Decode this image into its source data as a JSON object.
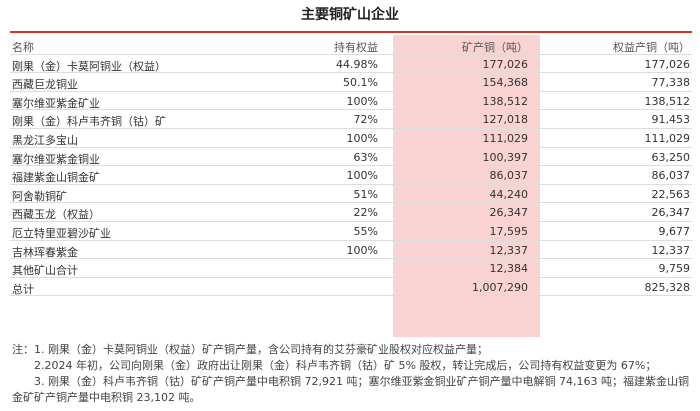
{
  "title": "主要铜矿山企业",
  "table": {
    "header": {
      "name": "名称",
      "share": "持有权益",
      "output": "矿产铜（吨）",
      "equity": "权益产铜（吨）"
    },
    "rows": [
      {
        "name": "刚果（金）卡莫阿铜业（权益）",
        "share": "44.98%",
        "output": "177,026",
        "equity": "177,026"
      },
      {
        "name": "西藏巨龙铜业",
        "share": "50.1%",
        "output": "154,368",
        "equity": "77,338"
      },
      {
        "name": "塞尔维亚紫金矿业",
        "share": "100%",
        "output": "138,512",
        "equity": "138,512"
      },
      {
        "name": "刚果（金）科卢韦齐铜（钴）矿",
        "share": "72%",
        "output": "127,018",
        "equity": "91,453"
      },
      {
        "name": "黑龙江多宝山",
        "share": "100%",
        "output": "111,029",
        "equity": "111,029"
      },
      {
        "name": "塞尔维亚紫金铜业",
        "share": "63%",
        "output": "100,397",
        "equity": "63,250"
      },
      {
        "name": "福建紫金山铜金矿",
        "share": "100%",
        "output": "86,037",
        "equity": "86,037"
      },
      {
        "name": "阿舍勒铜矿",
        "share": "51%",
        "output": "44,240",
        "equity": "22,563"
      },
      {
        "name": "西藏玉龙（权益）",
        "share": "22%",
        "output": "26,347",
        "equity": "26,347"
      },
      {
        "name": "厄立特里亚碧沙矿业",
        "share": "55%",
        "output": "17,595",
        "equity": "9,677"
      },
      {
        "name": "吉林珲春紫金",
        "share": "100%",
        "output": "12,337",
        "equity": "12,337"
      },
      {
        "name": "其他矿山合计",
        "output": "12,384",
        "equity": "9,759"
      },
      {
        "name": "总计",
        "output": "1,007,290",
        "equity": "825,328"
      }
    ]
  },
  "notes": {
    "prefix": "注：",
    "items": [
      "1. 刚果（金）卡莫阿铜业（权益）矿产铜产量，含公司持有的艾芬豪矿业股权对应权益产量；",
      "2.2024 年初，公司向刚果（金）政府出让刚果（金）科卢韦齐铜（钴）矿 5% 股权，转让完成后，公司持有权益变更为 67%；",
      "3. 刚果（金）科卢韦齐铜（钴）矿矿产铜产量中电积铜 72,921 吨；塞尔维亚紫金铜业矿产铜产量中电解铜 74,163 吨；福建紫金山铜金矿矿产铜产量中电积铜 23,102 吨。"
    ]
  }
}
